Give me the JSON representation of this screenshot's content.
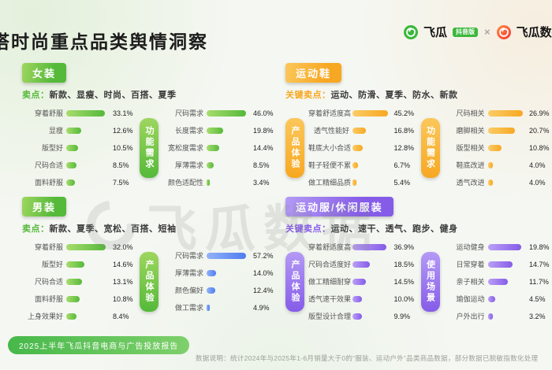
{
  "page": {
    "title": "穿搭时尚重点品类舆情洞察",
    "watermark": "飞瓜数据",
    "footer_banner": "2025上半年飞瓜抖音电商与广告投放报告",
    "footer_note": "数据说明：统计2024年与2025年1-6月销量大于0的“服装、运动户外”品类商品数据，部分数据已脱敏指数化处理"
  },
  "logos": {
    "brand1": "飞瓜",
    "brand1_badge": "抖音版",
    "separator": "×",
    "brand2": "飞瓜数据"
  },
  "chart_data": [
    {
      "name": "女装",
      "accent": "#55b93a",
      "accent_light": "#9ed65f",
      "sellpoints_label": "卖点：",
      "sellpoints": "新款、显瘦、时尚、百搭、夏季",
      "charts": [
        {
          "type": "bar",
          "badge": "",
          "color": "#55b93a",
          "color_light": "#a8dd6e",
          "max": 38,
          "rows": [
            {
              "label": "穿着舒服",
              "value": 33.1,
              "value_text": "33.1%"
            },
            {
              "label": "显瘦",
              "value": 12.6,
              "value_text": "12.6%"
            },
            {
              "label": "版型好",
              "value": 10.5,
              "value_text": "10.5%"
            },
            {
              "label": "尺码合适",
              "value": 8.5,
              "value_text": "8.5%"
            },
            {
              "label": "面料舒服",
              "value": 7.5,
              "value_text": "7.5%"
            }
          ]
        },
        {
          "type": "bar",
          "badge": "功能需求",
          "color": "#55b93a",
          "color_light": "#a8dd6e",
          "max": 52,
          "rows": [
            {
              "label": "尺码需求",
              "value": 46.0,
              "value_text": "46.0%"
            },
            {
              "label": "长度需求",
              "value": 19.8,
              "value_text": "19.8%"
            },
            {
              "label": "宽松度需求",
              "value": 14.4,
              "value_text": "14.4%"
            },
            {
              "label": "厚薄需求",
              "value": 8.5,
              "value_text": "8.5%"
            },
            {
              "label": "颜色适配性",
              "value": 3.4,
              "value_text": "3.4%"
            }
          ]
        }
      ]
    },
    {
      "name": "运动鞋",
      "accent": "#f7a823",
      "accent_light": "#fbc75a",
      "sellpoints_label": "关键卖点：",
      "sellpoints": "运动、防滑、夏季、防水、新款",
      "charts": [
        {
          "type": "bar",
          "badge": "产品体验",
          "color": "#f7a823",
          "color_light": "#fbcc66",
          "max": 50,
          "rows": [
            {
              "label": "穿着舒适度高",
              "value": 45.2,
              "value_text": "45.2%"
            },
            {
              "label": "透气性能好",
              "value": 16.8,
              "value_text": "16.8%"
            },
            {
              "label": "鞋底大小合适",
              "value": 12.8,
              "value_text": "12.8%"
            },
            {
              "label": "鞋子轻便不累",
              "value": 6.7,
              "value_text": "6.7%"
            },
            {
              "label": "做工精细品质",
              "value": 5.4,
              "value_text": "5.4%"
            }
          ]
        },
        {
          "type": "bar",
          "badge": "功能需求",
          "color": "#f7a823",
          "color_light": "#fbcc66",
          "max": 30,
          "rows": [
            {
              "label": "尺码相关",
              "value": 26.9,
              "value_text": "26.9%"
            },
            {
              "label": "磨脚相关",
              "value": 20.7,
              "value_text": "20.7%"
            },
            {
              "label": "版型相关",
              "value": 10.8,
              "value_text": "10.8%"
            },
            {
              "label": "鞋底改进",
              "value": 4.0,
              "value_text": "4.0%"
            },
            {
              "label": "透气改进",
              "value": 4.0,
              "value_text": "4.0%"
            }
          ]
        }
      ]
    },
    {
      "name": "男装",
      "accent": "#55b93a",
      "accent_light": "#9ed65f",
      "sellpoints_label": "卖点：",
      "sellpoints": "新款、夏季、宽松、百搭、短袖",
      "charts": [
        {
          "type": "bar",
          "badge": "",
          "color": "#55b93a",
          "color_light": "#a8dd6e",
          "max": 36,
          "rows": [
            {
              "label": "穿着舒服",
              "value": 32.0,
              "value_text": "32.0%"
            },
            {
              "label": "版型好",
              "value": 14.6,
              "value_text": "14.6%"
            },
            {
              "label": "尺码合适",
              "value": 13.1,
              "value_text": "13.1%"
            },
            {
              "label": "面料舒服",
              "value": 10.8,
              "value_text": "10.8%"
            },
            {
              "label": "上身效果好",
              "value": 8.4,
              "value_text": "8.4%"
            }
          ]
        },
        {
          "type": "bar",
          "badge": "产品体验",
          "color": "#4f7df0",
          "color_light": "#93b2f8",
          "max": 64,
          "rows": [
            {
              "label": "尺码需求",
              "value": 57.2,
              "value_text": "57.2%"
            },
            {
              "label": "厚薄需求",
              "value": 14.0,
              "value_text": "14.0%"
            },
            {
              "label": "颜色偏好",
              "value": 12.4,
              "value_text": "12.4%"
            },
            {
              "label": "做工需求",
              "value": 4.9,
              "value_text": "4.9%"
            }
          ]
        }
      ]
    },
    {
      "name": "运动服/休闲服装",
      "accent": "#855ce8",
      "accent_light": "#b49af5",
      "sellpoints_label": "关键卖点：",
      "sellpoints": "运动、速干、透气、跑步、健身",
      "charts": [
        {
          "type": "bar",
          "badge": "产品体验",
          "color": "#855ce8",
          "color_light": "#bb9ff6",
          "max": 42,
          "rows": [
            {
              "label": "穿着舒适度高",
              "value": 36.9,
              "value_text": "36.9%"
            },
            {
              "label": "尺码合适度好",
              "value": 18.5,
              "value_text": "18.5%"
            },
            {
              "label": "做工精细耐穿",
              "value": 14.5,
              "value_text": "14.5%"
            },
            {
              "label": "透气速干效果",
              "value": 10.0,
              "value_text": "10.0%"
            },
            {
              "label": "版型设计合理",
              "value": 9.9,
              "value_text": "9.9%"
            }
          ]
        },
        {
          "type": "bar",
          "badge": "使用场景",
          "color": "#855ce8",
          "color_light": "#bb9ff6",
          "max": 23,
          "rows": [
            {
              "label": "运动健身",
              "value": 19.8,
              "value_text": "19.8%"
            },
            {
              "label": "日常穿着",
              "value": 14.7,
              "value_text": "14.7%"
            },
            {
              "label": "亲子相关",
              "value": 11.7,
              "value_text": "11.7%"
            },
            {
              "label": "瑜伽运动",
              "value": 4.5,
              "value_text": "4.5%"
            },
            {
              "label": "户外出行",
              "value": 3.2,
              "value_text": "3.2%"
            }
          ]
        }
      ]
    }
  ]
}
